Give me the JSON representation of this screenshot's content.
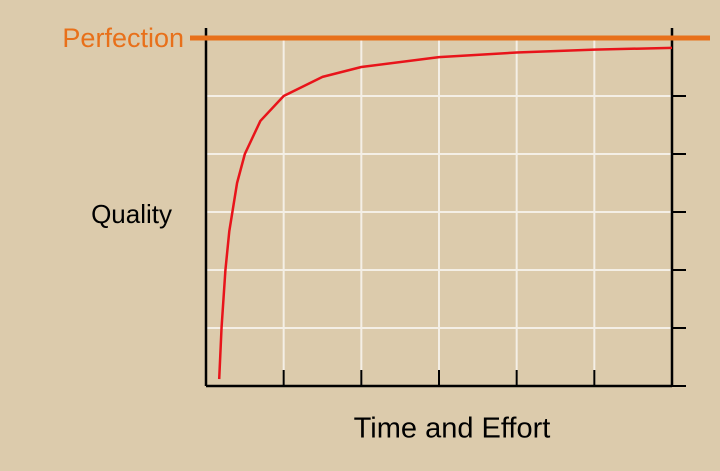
{
  "chart_data": {
    "type": "line",
    "x_label": "Time and Effort",
    "y_label": "Quality",
    "x": [
      0.17,
      0.2,
      0.25,
      0.3,
      0.4,
      0.5,
      0.7,
      1,
      1.5,
      2,
      3,
      4,
      5,
      6
    ],
    "values": [
      0.12,
      1,
      2,
      2.67,
      3.5,
      4,
      4.57,
      5,
      5.33,
      5.5,
      5.67,
      5.75,
      5.8,
      5.83
    ],
    "color": "#e8141a",
    "xlim": [
      0,
      6
    ],
    "ylim": [
      0,
      6
    ],
    "xticks": [
      0,
      1,
      2,
      3,
      4,
      5,
      6
    ],
    "yticks": [
      0,
      1,
      2,
      3,
      4,
      5,
      6
    ],
    "grid": true,
    "reference_line": {
      "label": "Perfection",
      "value": 6,
      "color": "#e8701a"
    }
  }
}
